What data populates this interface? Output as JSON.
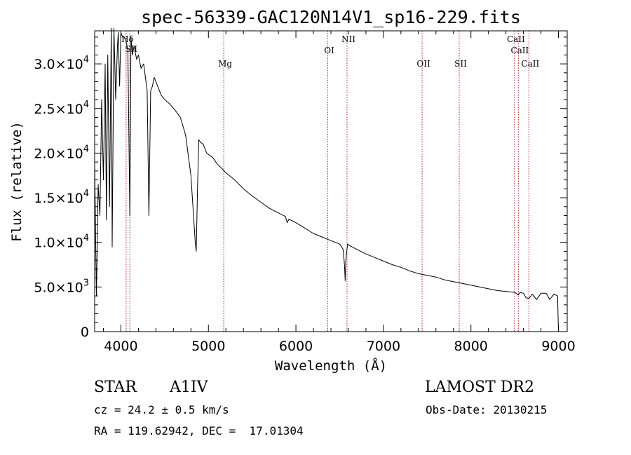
{
  "chart_data": {
    "type": "line",
    "title": "spec-56339-GAC120N14V1_sp16-229.fits",
    "xlabel": "Wavelength (Å)",
    "ylabel": "Flux (relative)",
    "xlim": [
      3700,
      9100
    ],
    "ylim": [
      0,
      33700
    ],
    "x_ticks": [
      4000,
      5000,
      6000,
      7000,
      8000,
      9000
    ],
    "y_ticks": [
      {
        "value": 0,
        "mant": "0",
        "exp": ""
      },
      {
        "value": 5000,
        "mant": "5.0×10",
        "exp": "3"
      },
      {
        "value": 10000,
        "mant": "1.0×10",
        "exp": "4"
      },
      {
        "value": 15000,
        "mant": "1.5×10",
        "exp": "4"
      },
      {
        "value": 20000,
        "mant": "2.0×10",
        "exp": "4"
      },
      {
        "value": 25000,
        "mant": "2.5×10",
        "exp": "4"
      },
      {
        "value": 30000,
        "mant": "3.0×10",
        "exp": "4"
      }
    ],
    "series": [
      {
        "x": [
          3700,
          3720,
          3740,
          3760,
          3780,
          3800,
          3820,
          3835,
          3850,
          3870,
          3890,
          3900,
          3920,
          3940,
          3960,
          3970,
          3985,
          4000,
          4020,
          4040,
          4060,
          4080,
          4102,
          4115,
          4130,
          4150,
          4180,
          4200,
          4230,
          4260,
          4300,
          4320,
          4340,
          4360,
          4380,
          4400,
          4420,
          4460,
          4500,
          4560,
          4620,
          4680,
          4740,
          4800,
          4830,
          4850,
          4861,
          4875,
          4890,
          4910,
          4940,
          4980,
          5050,
          5100,
          5150,
          5200,
          5250,
          5300,
          5400,
          5500,
          5600,
          5700,
          5800,
          5880,
          5900,
          5920,
          6000,
          6100,
          6200,
          6300,
          6400,
          6500,
          6540,
          6555,
          6563,
          6570,
          6590,
          6620,
          6700,
          6800,
          6900,
          7000,
          7100,
          7200,
          7300,
          7400,
          7500,
          7600,
          7700,
          7800,
          7900,
          8000,
          8100,
          8200,
          8300,
          8400,
          8500,
          8542,
          8560,
          8600,
          8630,
          8662,
          8700,
          8750,
          8800,
          8860,
          8900,
          8950,
          8990,
          9000
        ],
        "y": [
          19000,
          4000,
          16500,
          13000,
          26000,
          17000,
          30000,
          12500,
          31000,
          14000,
          34000,
          9500,
          34000,
          26000,
          32000,
          33500,
          27500,
          33500,
          33000,
          33000,
          32500,
          31500,
          13000,
          33000,
          31000,
          32000,
          30500,
          31000,
          29500,
          30000,
          27000,
          13000,
          27000,
          27500,
          28500,
          28000,
          27500,
          26500,
          26000,
          25500,
          24800,
          24000,
          22000,
          17500,
          13000,
          10000,
          9000,
          16000,
          21500,
          21200,
          21000,
          20000,
          19500,
          18800,
          18300,
          17800,
          17400,
          17000,
          16000,
          15200,
          14500,
          13800,
          13300,
          12900,
          12200,
          12600,
          12200,
          11600,
          11000,
          10600,
          10200,
          9800,
          9200,
          7500,
          5700,
          8000,
          9800,
          9600,
          9200,
          8700,
          8300,
          7900,
          7500,
          7200,
          6800,
          6500,
          6300,
          6100,
          5800,
          5600,
          5400,
          5200,
          5000,
          4800,
          4600,
          4500,
          4400,
          4100,
          4400,
          4300,
          3800,
          3700,
          4200,
          3600,
          4300,
          4300,
          3600,
          4200,
          4000,
          0
        ]
      }
    ],
    "lines": [
      {
        "x": 4060,
        "label": "Hδ"
      },
      {
        "x": 4102,
        "label": "SII"
      },
      {
        "x": 5175,
        "label": "Mg"
      },
      {
        "x": 6364,
        "label": "OI"
      },
      {
        "x": 6584,
        "label": "NII"
      },
      {
        "x": 7442,
        "label": "OII"
      },
      {
        "x": 7866,
        "label": "SII"
      },
      {
        "x": 8498,
        "label": "CaII"
      },
      {
        "x": 8542,
        "label": "CaII"
      },
      {
        "x": 8662,
        "label": "CaII"
      }
    ],
    "line_color": "#b22222",
    "spectrum_color": "#000000",
    "grid": false,
    "legend": "none"
  },
  "info": {
    "class": "STAR",
    "subclass": "A1IV",
    "survey": "LAMOST DR2",
    "cz": "cz = 24.2 ± 0.5 km/s",
    "obsdate": "Obs-Date: 20130215",
    "radec": "RA = 119.62942, DEC =  17.01304"
  }
}
